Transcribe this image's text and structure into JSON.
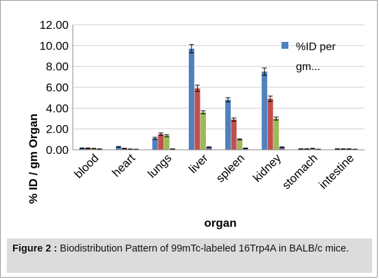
{
  "chart_data": {
    "type": "bar",
    "xlabel": "organ",
    "ylabel": "% ID / gm Organ",
    "ylim": [
      0,
      12
    ],
    "yticks": [
      "0.00",
      "2.00",
      "4.00",
      "6.00",
      "8.00",
      "10.00",
      "12.00"
    ],
    "categories": [
      "blood",
      "heart",
      "lungs",
      "liver",
      "spleen",
      "kidney",
      "stomach",
      "intestine"
    ],
    "legend": {
      "position": "top-right",
      "entries": [
        "%ID per gm..."
      ]
    },
    "series": [
      {
        "name": "%ID per gm...",
        "color": "#4f81bd",
        "values": [
          0.15,
          0.28,
          1.1,
          9.7,
          4.8,
          7.5,
          0.08,
          0.08
        ],
        "errors": [
          0.03,
          0.04,
          0.1,
          0.4,
          0.2,
          0.35,
          0.02,
          0.02
        ]
      },
      {
        "color": "#c0504d",
        "values": [
          0.15,
          0.12,
          1.5,
          5.9,
          2.9,
          4.9,
          0.08,
          0.08
        ],
        "errors": [
          0.03,
          0.03,
          0.12,
          0.3,
          0.15,
          0.25,
          0.02,
          0.02
        ]
      },
      {
        "color": "#9bbb59",
        "values": [
          0.12,
          0.06,
          1.35,
          3.6,
          1.0,
          3.0,
          0.12,
          0.08
        ],
        "errors": [
          0.02,
          0.02,
          0.1,
          0.15,
          0.05,
          0.15,
          0.02,
          0.02
        ]
      },
      {
        "color": "#8064a2",
        "values": [
          0.08,
          0.05,
          0.08,
          0.25,
          0.15,
          0.25,
          0.05,
          0.05
        ],
        "errors": [
          0.01,
          0.01,
          0.01,
          0.03,
          0.02,
          0.03,
          0.01,
          0.01
        ]
      }
    ]
  },
  "caption": {
    "label": "Figure 2 :",
    "text": "Biodistribution Pattern of 99mTc-labeled 16Trp4A in BALB/c mice."
  }
}
